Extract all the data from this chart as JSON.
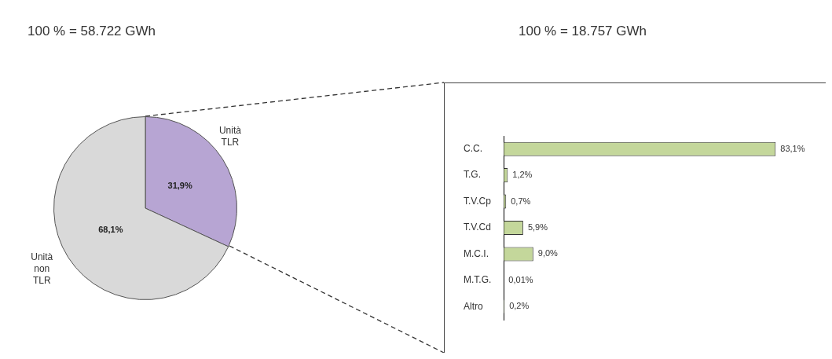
{
  "chart_data": [
    {
      "type": "pie",
      "title": "100 % = 58.722 GWh",
      "categories": [
        "Unità TLR",
        "Unità non TLR"
      ],
      "values": [
        31.9,
        68.1
      ],
      "colors": [
        "#b7a5d3",
        "#d9d9d9"
      ],
      "value_labels": [
        "31,9%",
        "68,1%"
      ]
    },
    {
      "type": "bar",
      "orientation": "horizontal",
      "title": "100 % = 18.757 GWh",
      "categories": [
        "C.C.",
        "T.G.",
        "T.V.Cp",
        "T.V.Cd",
        "M.C.I.",
        "M.T.G.",
        "Altro"
      ],
      "values": [
        83.1,
        1.2,
        0.7,
        5.9,
        9.0,
        0.01,
        0.2
      ],
      "color": "#c4d79b",
      "value_labels": [
        "83,1%",
        "1,2%",
        "0,7%",
        "5,9%",
        "9,0%",
        "0,01%",
        "0,2%"
      ],
      "tick_labels": "y"
    }
  ]
}
